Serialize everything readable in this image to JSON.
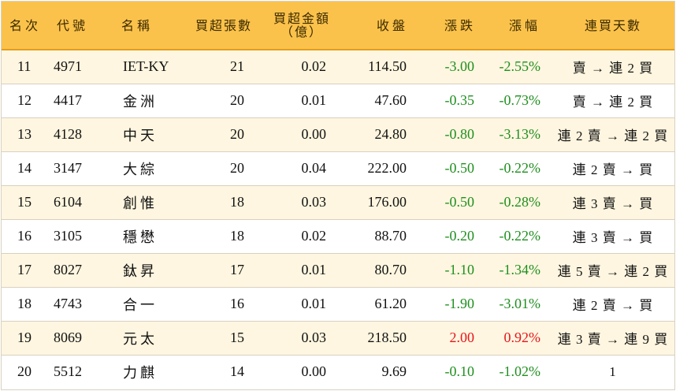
{
  "colors": {
    "header_bg": "#fbc24b",
    "row_alt_bg": "#fef6e0",
    "up": "#e8151b",
    "down": "#1f8f1f"
  },
  "headers": {
    "rank": "名次",
    "code": "代號",
    "name": "名稱",
    "net_buy_lots": "買超張數",
    "net_buy_amount_line1": "買超金額",
    "net_buy_amount_line2": "（億）",
    "close": "收盤",
    "change": "漲跌",
    "change_pct": "漲幅",
    "streak": "連買天數"
  },
  "rows": [
    {
      "rank": "11",
      "code": "4971",
      "name": "IET-KY",
      "lots": "21",
      "amount": "0.02",
      "close": "114.50",
      "change": "-3.00",
      "pct": "-2.55%",
      "streak": "賣 → 連 2 買",
      "dir": "down"
    },
    {
      "rank": "12",
      "code": "4417",
      "name": "金洲",
      "lots": "20",
      "amount": "0.01",
      "close": "47.60",
      "change": "-0.35",
      "pct": "-0.73%",
      "streak": "賣 → 連 2 買",
      "dir": "down"
    },
    {
      "rank": "13",
      "code": "4128",
      "name": "中天",
      "lots": "20",
      "amount": "0.00",
      "close": "24.80",
      "change": "-0.80",
      "pct": "-3.13%",
      "streak": "連 2 賣 → 連 2 買",
      "dir": "down"
    },
    {
      "rank": "14",
      "code": "3147",
      "name": "大綜",
      "lots": "20",
      "amount": "0.04",
      "close": "222.00",
      "change": "-0.50",
      "pct": "-0.22%",
      "streak": "連 2 賣 → 買",
      "dir": "down"
    },
    {
      "rank": "15",
      "code": "6104",
      "name": "創惟",
      "lots": "18",
      "amount": "0.03",
      "close": "176.00",
      "change": "-0.50",
      "pct": "-0.28%",
      "streak": "連 3 賣 → 買",
      "dir": "down"
    },
    {
      "rank": "16",
      "code": "3105",
      "name": "穩懋",
      "lots": "18",
      "amount": "0.02",
      "close": "88.70",
      "change": "-0.20",
      "pct": "-0.22%",
      "streak": "連 3 賣 → 買",
      "dir": "down"
    },
    {
      "rank": "17",
      "code": "8027",
      "name": "鈦昇",
      "lots": "17",
      "amount": "0.01",
      "close": "80.70",
      "change": "-1.10",
      "pct": "-1.34%",
      "streak": "連 5 賣 → 連 2 買",
      "dir": "down"
    },
    {
      "rank": "18",
      "code": "4743",
      "name": "合一",
      "lots": "16",
      "amount": "0.01",
      "close": "61.20",
      "change": "-1.90",
      "pct": "-3.01%",
      "streak": "連 2 賣 → 買",
      "dir": "down"
    },
    {
      "rank": "19",
      "code": "8069",
      "name": "元太",
      "lots": "15",
      "amount": "0.03",
      "close": "218.50",
      "change": "2.00",
      "pct": "0.92%",
      "streak": "連 3 賣 → 連 9 買",
      "dir": "up"
    },
    {
      "rank": "20",
      "code": "5512",
      "name": "力麒",
      "lots": "14",
      "amount": "0.00",
      "close": "9.69",
      "change": "-0.10",
      "pct": "-1.02%",
      "streak": "1",
      "dir": "down"
    }
  ]
}
